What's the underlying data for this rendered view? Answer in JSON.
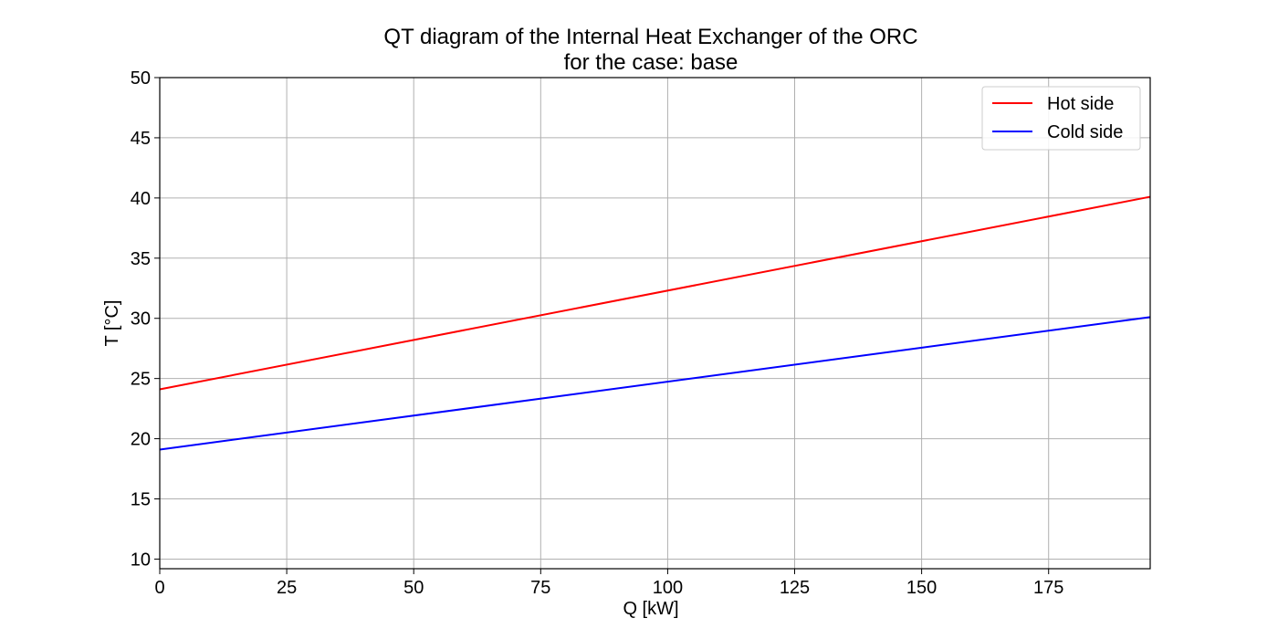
{
  "chart_data": {
    "type": "line",
    "title": "QT diagram of the Internal Heat Exchanger of the ORC",
    "subtitle": "for the case: base",
    "xlabel": "Q [kW]",
    "ylabel": "T [°C]",
    "xlim": [
      0,
      195
    ],
    "ylim": [
      9.2,
      50
    ],
    "xticks": [
      0,
      25,
      50,
      75,
      100,
      125,
      150,
      175
    ],
    "yticks": [
      10,
      15,
      20,
      25,
      30,
      35,
      40,
      45,
      50
    ],
    "grid": true,
    "legend_position": "top-right",
    "series": [
      {
        "name": "Hot side",
        "color": "#ff0000",
        "x": [
          0,
          195
        ],
        "y": [
          24.1,
          40.1
        ]
      },
      {
        "name": "Cold side",
        "color": "#0000ff",
        "x": [
          0,
          195
        ],
        "y": [
          19.1,
          30.1
        ]
      }
    ]
  }
}
